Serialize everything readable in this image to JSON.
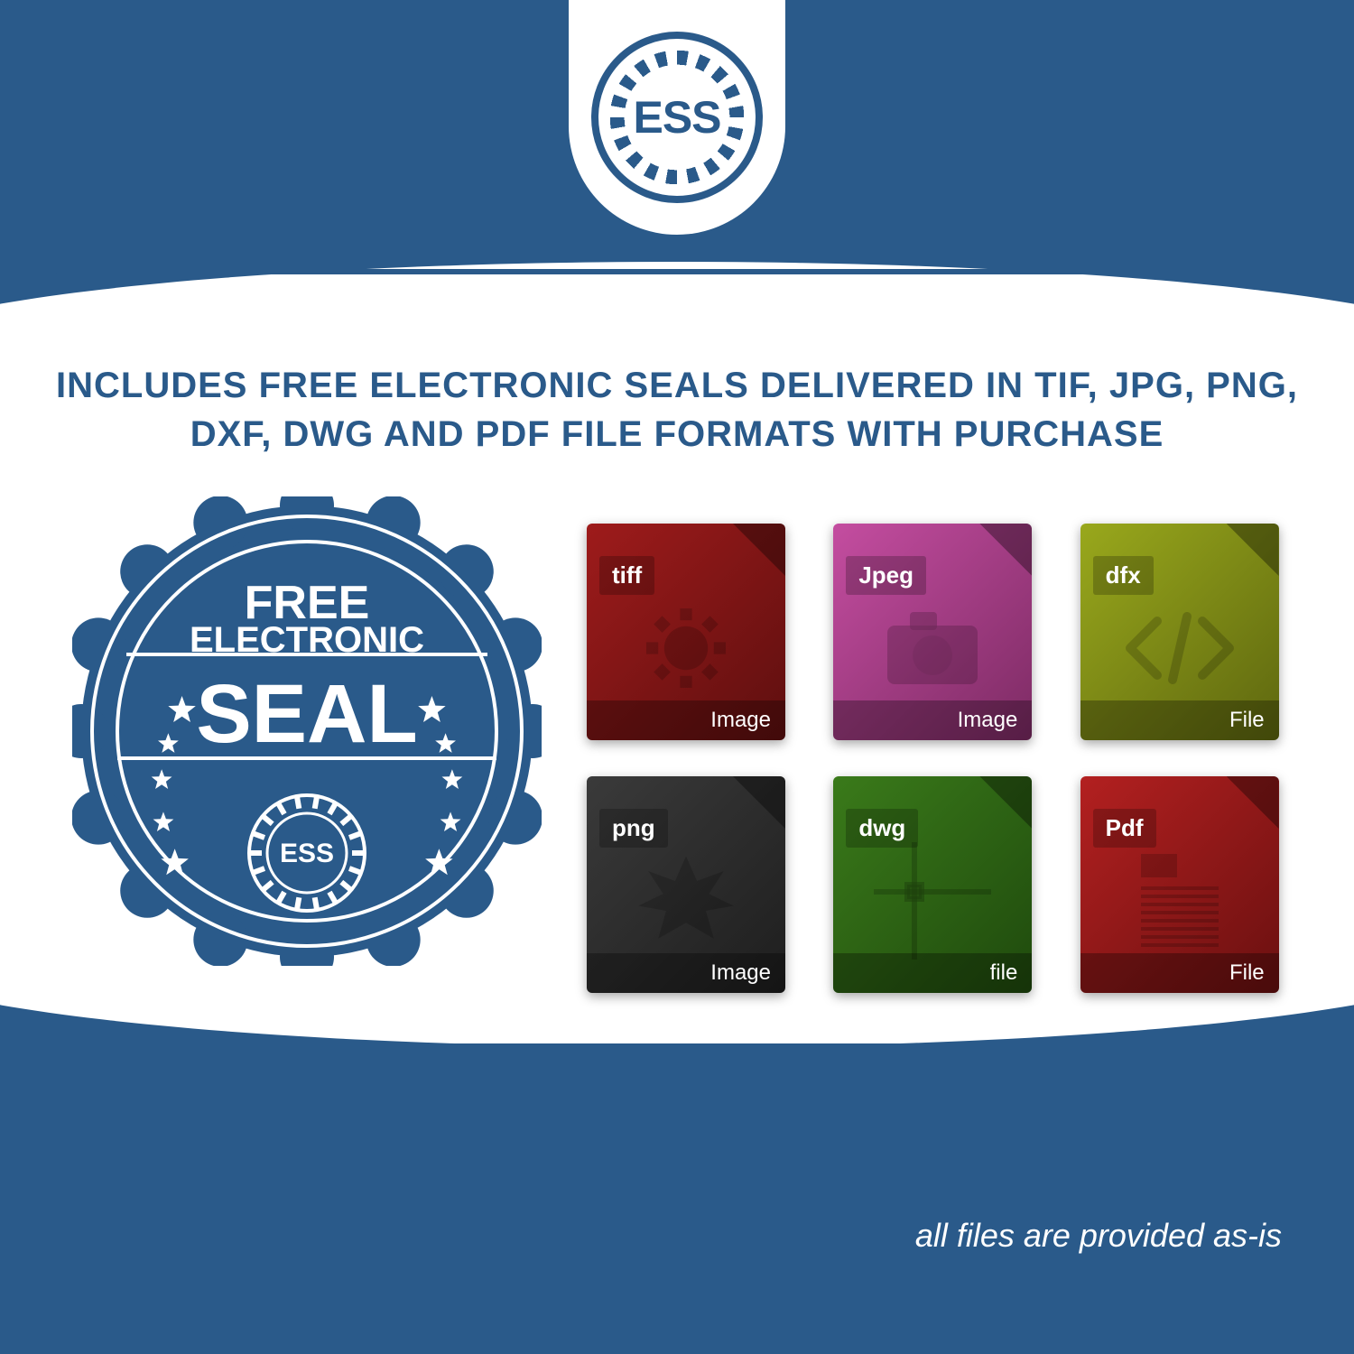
{
  "colors": {
    "primary_blue": "#2a5a8a",
    "white": "#ffffff"
  },
  "logo": {
    "text": "ESS"
  },
  "headline": "INCLUDES FREE ELECTRONIC SEALS DELIVERED IN TIF, JPG, PNG, DXF, DWG AND PDF FILE FORMATS WITH PURCHASE",
  "seal": {
    "line1": "FREE",
    "line2": "ELECTRONIC",
    "line3": "SEAL",
    "inner_badge_text": "ESS",
    "fill_color": "#2a5a8a",
    "text_color": "#ffffff",
    "star_count": 10
  },
  "file_icons": [
    {
      "ext": "tiff",
      "footer": "Image",
      "main_color": "#9e1b1b",
      "dark_color": "#5e0f0f",
      "graphic": "gear"
    },
    {
      "ext": "Jpeg",
      "footer": "Image",
      "main_color": "#c44da0",
      "dark_color": "#7d2b64",
      "graphic": "camera"
    },
    {
      "ext": "dfx",
      "footer": "File",
      "main_color": "#99a81c",
      "dark_color": "#5e670f",
      "graphic": "code"
    },
    {
      "ext": "png",
      "footer": "Image",
      "main_color": "#3a3a3a",
      "dark_color": "#1e1e1e",
      "graphic": "starburst"
    },
    {
      "ext": "dwg",
      "footer": "file",
      "main_color": "#3a7a1a",
      "dark_color": "#1f4a0d",
      "graphic": "grid"
    },
    {
      "ext": "Pdf",
      "footer": "File",
      "main_color": "#b32020",
      "dark_color": "#6a1010",
      "graphic": "document"
    }
  ],
  "footnote": "all files are provided as-is"
}
